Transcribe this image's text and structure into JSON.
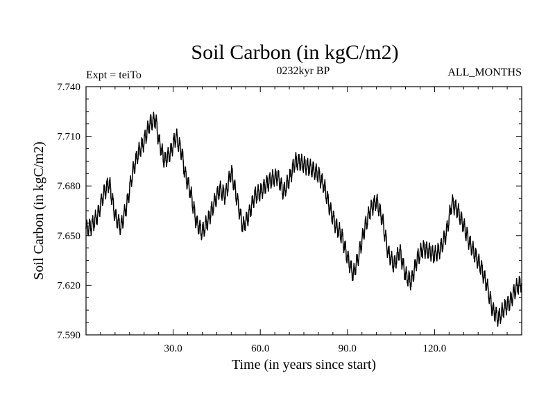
{
  "chart_data": {
    "type": "line",
    "title": "Soil Carbon (in kgC/m2)",
    "subtitle_left": "Expt = teiTo",
    "subtitle_center": "0232kyr BP",
    "subtitle_right": "ALL_MONTHS",
    "xlabel": "Time (in years since start)",
    "ylabel": "Soil Carbon (in kgC/m2)",
    "xlim": [
      0,
      150
    ],
    "ylim": [
      7.59,
      7.74
    ],
    "x_ticks": [
      30,
      60,
      90,
      120
    ],
    "x_tick_labels": [
      "30.0",
      "60.0",
      "90.0",
      "120.0"
    ],
    "y_ticks": [
      7.59,
      7.62,
      7.65,
      7.68,
      7.71,
      7.74
    ],
    "y_tick_labels": [
      "7.590",
      "7.620",
      "7.650",
      "7.680",
      "7.710",
      "7.740"
    ],
    "seasonal_amplitude": 0.0045,
    "series": [
      {
        "name": "Soil Carbon",
        "color": "#000000",
        "x": [
          0,
          2,
          4,
          6,
          8,
          10,
          12,
          14,
          16,
          18,
          20,
          22,
          24,
          25,
          27,
          29,
          31,
          33,
          34,
          36,
          38,
          40,
          42,
          44,
          46,
          48,
          50,
          52,
          54,
          56,
          58,
          60,
          62,
          64,
          66,
          68,
          70,
          72,
          74,
          76,
          78,
          80,
          82,
          84,
          86,
          88,
          90,
          92,
          94,
          96,
          98,
          100,
          102,
          104,
          106,
          108,
          110,
          112,
          114,
          116,
          118,
          120,
          122,
          124,
          126,
          128,
          130,
          132,
          134,
          136,
          138,
          140,
          142,
          144,
          146,
          148,
          150
        ],
        "values": [
          7.654,
          7.656,
          7.662,
          7.675,
          7.682,
          7.662,
          7.655,
          7.668,
          7.688,
          7.7,
          7.707,
          7.718,
          7.72,
          7.708,
          7.695,
          7.7,
          7.71,
          7.7,
          7.688,
          7.676,
          7.658,
          7.652,
          7.659,
          7.669,
          7.678,
          7.674,
          7.689,
          7.672,
          7.655,
          7.662,
          7.674,
          7.676,
          7.681,
          7.684,
          7.686,
          7.676,
          7.684,
          7.695,
          7.694,
          7.692,
          7.69,
          7.687,
          7.68,
          7.666,
          7.656,
          7.65,
          7.637,
          7.626,
          7.639,
          7.655,
          7.666,
          7.671,
          7.66,
          7.64,
          7.632,
          7.641,
          7.626,
          7.622,
          7.636,
          7.642,
          7.641,
          7.638,
          7.642,
          7.651,
          7.67,
          7.665,
          7.656,
          7.646,
          7.638,
          7.631,
          7.62,
          7.605,
          7.6,
          7.606,
          7.61,
          7.618,
          7.622
        ]
      }
    ]
  }
}
